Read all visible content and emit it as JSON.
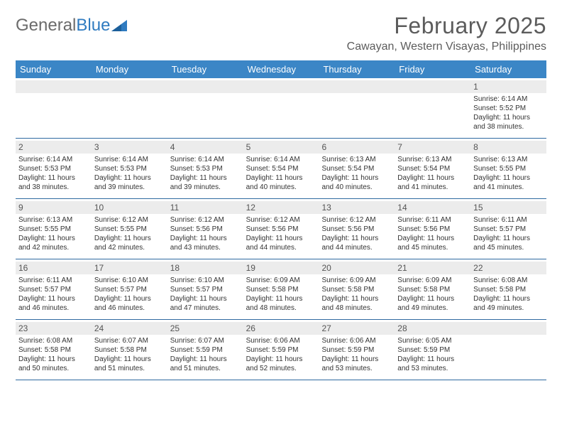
{
  "brand": {
    "part1": "General",
    "part2": "Blue"
  },
  "title": "February 2025",
  "location": "Cawayan, Western Visayas, Philippines",
  "colors": {
    "header_bar": "#3b86c6",
    "rule": "#2f6aa0",
    "band": "#ececec",
    "text": "#333333",
    "title": "#5c5c5c",
    "background": "#ffffff"
  },
  "dow": [
    "Sunday",
    "Monday",
    "Tuesday",
    "Wednesday",
    "Thursday",
    "Friday",
    "Saturday"
  ],
  "weeks": [
    [
      {
        "n": "",
        "sr": "",
        "ss": "",
        "d1": "",
        "d2": ""
      },
      {
        "n": "",
        "sr": "",
        "ss": "",
        "d1": "",
        "d2": ""
      },
      {
        "n": "",
        "sr": "",
        "ss": "",
        "d1": "",
        "d2": ""
      },
      {
        "n": "",
        "sr": "",
        "ss": "",
        "d1": "",
        "d2": ""
      },
      {
        "n": "",
        "sr": "",
        "ss": "",
        "d1": "",
        "d2": ""
      },
      {
        "n": "",
        "sr": "",
        "ss": "",
        "d1": "",
        "d2": ""
      },
      {
        "n": "1",
        "sr": "Sunrise: 6:14 AM",
        "ss": "Sunset: 5:52 PM",
        "d1": "Daylight: 11 hours",
        "d2": "and 38 minutes."
      }
    ],
    [
      {
        "n": "2",
        "sr": "Sunrise: 6:14 AM",
        "ss": "Sunset: 5:53 PM",
        "d1": "Daylight: 11 hours",
        "d2": "and 38 minutes."
      },
      {
        "n": "3",
        "sr": "Sunrise: 6:14 AM",
        "ss": "Sunset: 5:53 PM",
        "d1": "Daylight: 11 hours",
        "d2": "and 39 minutes."
      },
      {
        "n": "4",
        "sr": "Sunrise: 6:14 AM",
        "ss": "Sunset: 5:53 PM",
        "d1": "Daylight: 11 hours",
        "d2": "and 39 minutes."
      },
      {
        "n": "5",
        "sr": "Sunrise: 6:14 AM",
        "ss": "Sunset: 5:54 PM",
        "d1": "Daylight: 11 hours",
        "d2": "and 40 minutes."
      },
      {
        "n": "6",
        "sr": "Sunrise: 6:13 AM",
        "ss": "Sunset: 5:54 PM",
        "d1": "Daylight: 11 hours",
        "d2": "and 40 minutes."
      },
      {
        "n": "7",
        "sr": "Sunrise: 6:13 AM",
        "ss": "Sunset: 5:54 PM",
        "d1": "Daylight: 11 hours",
        "d2": "and 41 minutes."
      },
      {
        "n": "8",
        "sr": "Sunrise: 6:13 AM",
        "ss": "Sunset: 5:55 PM",
        "d1": "Daylight: 11 hours",
        "d2": "and 41 minutes."
      }
    ],
    [
      {
        "n": "9",
        "sr": "Sunrise: 6:13 AM",
        "ss": "Sunset: 5:55 PM",
        "d1": "Daylight: 11 hours",
        "d2": "and 42 minutes."
      },
      {
        "n": "10",
        "sr": "Sunrise: 6:12 AM",
        "ss": "Sunset: 5:55 PM",
        "d1": "Daylight: 11 hours",
        "d2": "and 42 minutes."
      },
      {
        "n": "11",
        "sr": "Sunrise: 6:12 AM",
        "ss": "Sunset: 5:56 PM",
        "d1": "Daylight: 11 hours",
        "d2": "and 43 minutes."
      },
      {
        "n": "12",
        "sr": "Sunrise: 6:12 AM",
        "ss": "Sunset: 5:56 PM",
        "d1": "Daylight: 11 hours",
        "d2": "and 44 minutes."
      },
      {
        "n": "13",
        "sr": "Sunrise: 6:12 AM",
        "ss": "Sunset: 5:56 PM",
        "d1": "Daylight: 11 hours",
        "d2": "and 44 minutes."
      },
      {
        "n": "14",
        "sr": "Sunrise: 6:11 AM",
        "ss": "Sunset: 5:56 PM",
        "d1": "Daylight: 11 hours",
        "d2": "and 45 minutes."
      },
      {
        "n": "15",
        "sr": "Sunrise: 6:11 AM",
        "ss": "Sunset: 5:57 PM",
        "d1": "Daylight: 11 hours",
        "d2": "and 45 minutes."
      }
    ],
    [
      {
        "n": "16",
        "sr": "Sunrise: 6:11 AM",
        "ss": "Sunset: 5:57 PM",
        "d1": "Daylight: 11 hours",
        "d2": "and 46 minutes."
      },
      {
        "n": "17",
        "sr": "Sunrise: 6:10 AM",
        "ss": "Sunset: 5:57 PM",
        "d1": "Daylight: 11 hours",
        "d2": "and 46 minutes."
      },
      {
        "n": "18",
        "sr": "Sunrise: 6:10 AM",
        "ss": "Sunset: 5:57 PM",
        "d1": "Daylight: 11 hours",
        "d2": "and 47 minutes."
      },
      {
        "n": "19",
        "sr": "Sunrise: 6:09 AM",
        "ss": "Sunset: 5:58 PM",
        "d1": "Daylight: 11 hours",
        "d2": "and 48 minutes."
      },
      {
        "n": "20",
        "sr": "Sunrise: 6:09 AM",
        "ss": "Sunset: 5:58 PM",
        "d1": "Daylight: 11 hours",
        "d2": "and 48 minutes."
      },
      {
        "n": "21",
        "sr": "Sunrise: 6:09 AM",
        "ss": "Sunset: 5:58 PM",
        "d1": "Daylight: 11 hours",
        "d2": "and 49 minutes."
      },
      {
        "n": "22",
        "sr": "Sunrise: 6:08 AM",
        "ss": "Sunset: 5:58 PM",
        "d1": "Daylight: 11 hours",
        "d2": "and 49 minutes."
      }
    ],
    [
      {
        "n": "23",
        "sr": "Sunrise: 6:08 AM",
        "ss": "Sunset: 5:58 PM",
        "d1": "Daylight: 11 hours",
        "d2": "and 50 minutes."
      },
      {
        "n": "24",
        "sr": "Sunrise: 6:07 AM",
        "ss": "Sunset: 5:58 PM",
        "d1": "Daylight: 11 hours",
        "d2": "and 51 minutes."
      },
      {
        "n": "25",
        "sr": "Sunrise: 6:07 AM",
        "ss": "Sunset: 5:59 PM",
        "d1": "Daylight: 11 hours",
        "d2": "and 51 minutes."
      },
      {
        "n": "26",
        "sr": "Sunrise: 6:06 AM",
        "ss": "Sunset: 5:59 PM",
        "d1": "Daylight: 11 hours",
        "d2": "and 52 minutes."
      },
      {
        "n": "27",
        "sr": "Sunrise: 6:06 AM",
        "ss": "Sunset: 5:59 PM",
        "d1": "Daylight: 11 hours",
        "d2": "and 53 minutes."
      },
      {
        "n": "28",
        "sr": "Sunrise: 6:05 AM",
        "ss": "Sunset: 5:59 PM",
        "d1": "Daylight: 11 hours",
        "d2": "and 53 minutes."
      },
      {
        "n": "",
        "sr": "",
        "ss": "",
        "d1": "",
        "d2": ""
      }
    ]
  ]
}
